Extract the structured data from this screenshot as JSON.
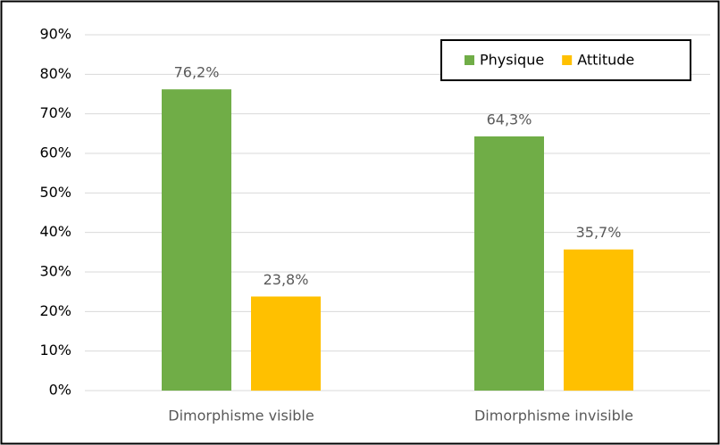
{
  "chart_data": {
    "type": "bar",
    "categories": [
      "Dimorphisme visible",
      "Dimorphisme invisible"
    ],
    "series": [
      {
        "name": "Physique",
        "color": "#70ad47",
        "values": [
          76.2,
          64.3
        ],
        "value_labels": [
          "76,2%",
          "64,3%"
        ]
      },
      {
        "name": "Attitude",
        "color": "#ffc000",
        "values": [
          23.8,
          35.7
        ],
        "value_labels": [
          "23,8%",
          "35,7%"
        ]
      }
    ],
    "ylim": [
      0,
      90
    ],
    "yticks": [
      {
        "value": 0,
        "label": "0%"
      },
      {
        "value": 10,
        "label": "10%"
      },
      {
        "value": 20,
        "label": "20%"
      },
      {
        "value": 30,
        "label": "30%"
      },
      {
        "value": 40,
        "label": "40%"
      },
      {
        "value": 50,
        "label": "50%"
      },
      {
        "value": 60,
        "label": "60%"
      },
      {
        "value": 70,
        "label": "70%"
      },
      {
        "value": 80,
        "label": "80%"
      },
      {
        "value": 90,
        "label": "90%"
      }
    ],
    "grid": true,
    "legend": "top-right"
  }
}
